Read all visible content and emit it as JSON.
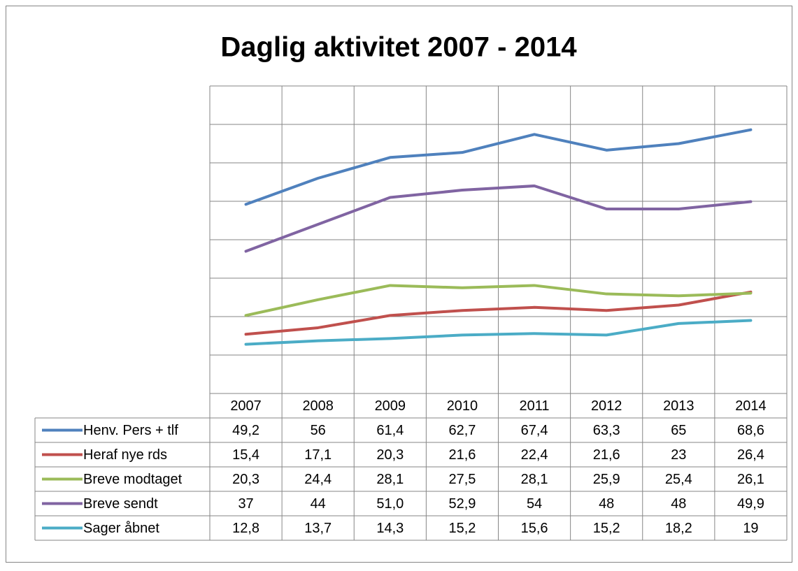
{
  "chart_data": {
    "type": "line",
    "title": "Daglig aktivitet 2007 - 2014",
    "categories": [
      "2007",
      "2008",
      "2009",
      "2010",
      "2011",
      "2012",
      "2013",
      "2014"
    ],
    "ylim": [
      0,
      80
    ],
    "yticks": [
      0,
      10,
      20,
      30,
      40,
      50,
      60,
      70,
      80
    ],
    "grid": true,
    "series": [
      {
        "name": "Henv. Pers + tlf",
        "color": "#4f81bd",
        "values": [
          49.2,
          56,
          61.4,
          62.7,
          67.4,
          63.3,
          65,
          68.6
        ],
        "value_labels": [
          "49,2",
          "56",
          "61,4",
          "62,7",
          "67,4",
          "63,3",
          "65",
          "68,6"
        ]
      },
      {
        "name": "Heraf nye rds",
        "color": "#c0504d",
        "values": [
          15.4,
          17.1,
          20.3,
          21.6,
          22.4,
          21.6,
          23,
          26.4
        ],
        "value_labels": [
          "15,4",
          "17,1",
          "20,3",
          "21,6",
          "22,4",
          "21,6",
          "23",
          "26,4"
        ]
      },
      {
        "name": "Breve modtaget",
        "color": "#9bbb59",
        "values": [
          20.3,
          24.4,
          28.1,
          27.5,
          28.1,
          25.9,
          25.4,
          26.1
        ],
        "value_labels": [
          "20,3",
          "24,4",
          "28,1",
          "27,5",
          "28,1",
          "25,9",
          "25,4",
          "26,1"
        ]
      },
      {
        "name": "Breve sendt",
        "color": "#8064a2",
        "values": [
          37,
          44,
          51.0,
          52.9,
          54,
          48,
          48,
          49.9
        ],
        "value_labels": [
          "37",
          "44",
          "51,0",
          "52,9",
          "54",
          "48",
          "48",
          "49,9"
        ]
      },
      {
        "name": "Sager åbnet",
        "color": "#4bacc6",
        "values": [
          12.8,
          13.7,
          14.3,
          15.2,
          15.6,
          15.2,
          18.2,
          19
        ],
        "value_labels": [
          "12,8",
          "13,7",
          "14,3",
          "15,2",
          "15,6",
          "15,2",
          "18,2",
          "19"
        ]
      }
    ]
  }
}
